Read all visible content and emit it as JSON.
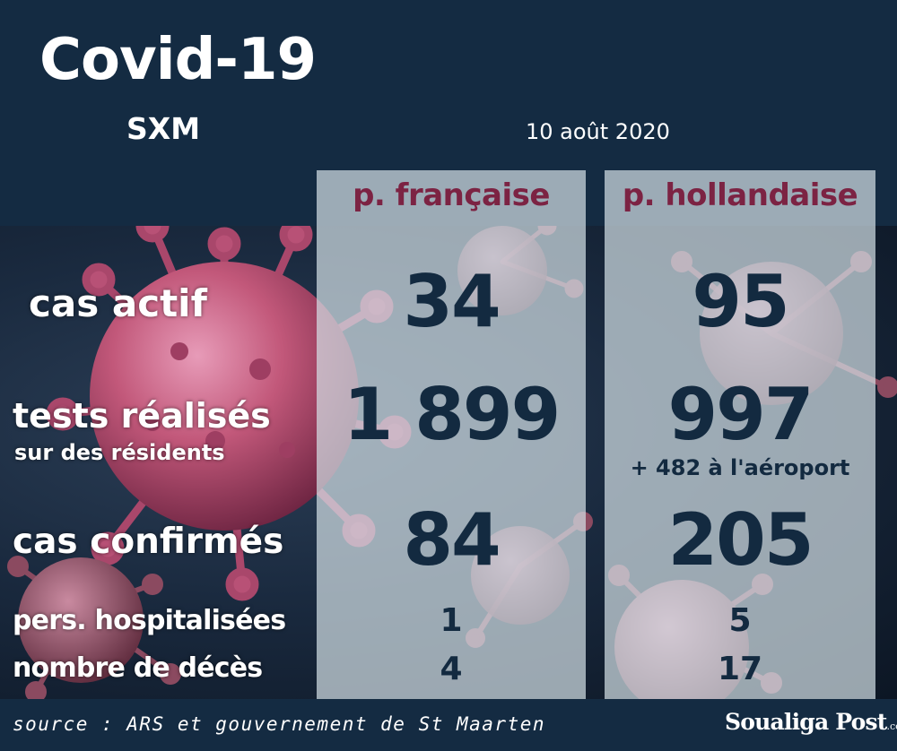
{
  "header": {
    "title": "Covid-19",
    "subtitle": "SXM",
    "date": "10 août 2020"
  },
  "columns": {
    "fr": {
      "label": "p. française",
      "cas_actif": "34",
      "tests": "1 899",
      "confirmes": "84",
      "hospitalises": "1",
      "deces": "4"
    },
    "nl": {
      "label": "p. hollandaise",
      "cas_actif": "95",
      "tests": "997",
      "tests_note": "+ 482 à l'aéroport",
      "confirmes": "205",
      "hospitalises": "5",
      "deces": "17"
    }
  },
  "rows": {
    "cas_actif": "cas actif",
    "tests": "tests réalisés",
    "tests_sub": "sur des résidents",
    "confirmes": "cas confirmés",
    "hospitalises": "pers. hospitalisées",
    "deces": "nombre de décès"
  },
  "footer": {
    "source": "source : ARS et gouvernement de St Maarten",
    "brand": "Soualiga Post",
    "brand_domain": ".com"
  },
  "colors": {
    "background": "#142b42",
    "accent": "#7c2343",
    "number": "#132a40",
    "virus": "#c2587a"
  },
  "icons": [
    "coronavirus-icon"
  ]
}
